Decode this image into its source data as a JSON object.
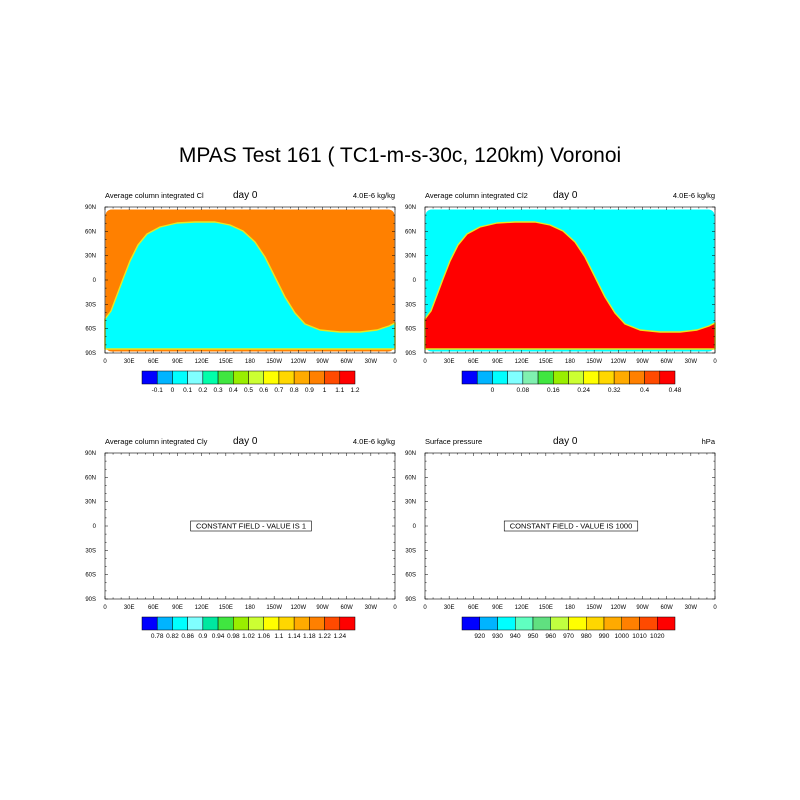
{
  "title": "MPAS Test 161 ( TC1-m-s-30c, 120km)  Voronoi",
  "lon_labels": [
    "0",
    "30E",
    "60E",
    "90E",
    "120E",
    "150E",
    "180",
    "150W",
    "120W",
    "90W",
    "60W",
    "30W",
    "0"
  ],
  "lat_labels": [
    "90N",
    "60N",
    "30N",
    "0",
    "30S",
    "60S",
    "90S"
  ],
  "colors": {
    "orange": "#ff8000",
    "cyan": "#00ffff",
    "red": "#ff0000",
    "yellow": "#e8e820"
  },
  "panels": [
    {
      "id": "cl",
      "left_label": "Average column integrated Cl",
      "day_label": "day  0",
      "right_label": "4.0E-6 kg/kg",
      "field_type": "map",
      "background": "#ff8000",
      "blob": "#00ffff",
      "colorbar": {
        "colors": [
          "#0000ff",
          "#00b4ff",
          "#00ffff",
          "#80ffff",
          "#00ffaa",
          "#40e640",
          "#99ee00",
          "#ccff33",
          "#ffff00",
          "#ffd700",
          "#ffaa00",
          "#ff8000",
          "#ff4a00",
          "#ff0000"
        ],
        "labels": [
          "-0.1",
          "0",
          "0.1",
          "0.2",
          "0.3",
          "0.4",
          "0.5",
          "0.6",
          "0.7",
          "0.8",
          "0.9",
          "1",
          "1.1",
          "1.2"
        ]
      }
    },
    {
      "id": "cl2",
      "left_label": "Average column integrated Cl2",
      "day_label": "day  0",
      "right_label": "4.0E-6 kg/kg",
      "field_type": "map",
      "background": "#00ffff",
      "blob": "#ff0000",
      "colorbar": {
        "colors": [
          "#0000ff",
          "#00b4ff",
          "#00ffff",
          "#80ffff",
          "#80f0b0",
          "#40e640",
          "#99ee00",
          "#ccff33",
          "#ffff00",
          "#ffd700",
          "#ffaa00",
          "#ff8000",
          "#ff4a00",
          "#ff0000"
        ],
        "labels": [
          "",
          "0",
          "",
          "0.08",
          "",
          "0.16",
          "",
          "0.24",
          "",
          "0.32",
          "",
          "0.4",
          "",
          "0.48"
        ]
      }
    },
    {
      "id": "cly",
      "left_label": "Average column integrated Cly",
      "day_label": "day  0",
      "right_label": "4.0E-6 kg/kg",
      "field_type": "constant",
      "constant_label": "CONSTANT FIELD - VALUE IS 1",
      "colorbar": {
        "colors": [
          "#0000ff",
          "#00b4ff",
          "#00ffff",
          "#80ffff",
          "#00e8a0",
          "#40e640",
          "#99ee00",
          "#ccff33",
          "#ffff00",
          "#ffd700",
          "#ffaa00",
          "#ff8000",
          "#ff4a00",
          "#ff0000"
        ],
        "labels": [
          "0.78",
          "0.82",
          "0.86",
          "0.9",
          "0.94",
          "0.98",
          "1.02",
          "1.06",
          "1.1",
          "1.14",
          "1.18",
          "1.22",
          "1.24"
        ]
      }
    },
    {
      "id": "ps",
      "left_label": "Surface pressure",
      "day_label": "day  0",
      "right_label": "hPa",
      "field_type": "constant",
      "constant_label": "CONSTANT FIELD - VALUE IS 1000",
      "colorbar": {
        "colors": [
          "#0000ff",
          "#00b4ff",
          "#00ffff",
          "#60ffc0",
          "#60e080",
          "#c0ff40",
          "#ffff00",
          "#ffd700",
          "#ffaa00",
          "#ff8000",
          "#ff4a00",
          "#ff0000"
        ],
        "labels": [
          "920",
          "930",
          "940",
          "950",
          "960",
          "970",
          "980",
          "990",
          "1000",
          "1010",
          "1020"
        ]
      }
    }
  ]
}
